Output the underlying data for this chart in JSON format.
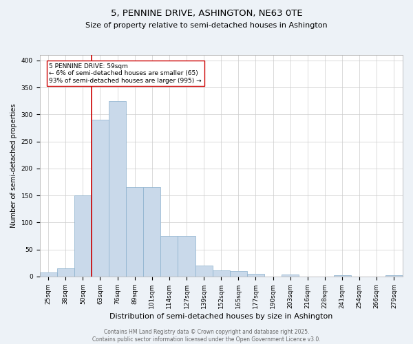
{
  "title": "5, PENNINE DRIVE, ASHINGTON, NE63 0TE",
  "subtitle": "Size of property relative to semi-detached houses in Ashington",
  "xlabel": "Distribution of semi-detached houses by size in Ashington",
  "ylabel": "Number of semi-detached properties",
  "categories": [
    "25sqm",
    "38sqm",
    "50sqm",
    "63sqm",
    "76sqm",
    "89sqm",
    "101sqm",
    "114sqm",
    "127sqm",
    "139sqm",
    "152sqm",
    "165sqm",
    "177sqm",
    "190sqm",
    "203sqm",
    "216sqm",
    "228sqm",
    "241sqm",
    "254sqm",
    "266sqm",
    "279sqm"
  ],
  "values": [
    7,
    15,
    150,
    290,
    325,
    165,
    165,
    75,
    75,
    20,
    12,
    10,
    5,
    0,
    4,
    0,
    0,
    3,
    0,
    0,
    2
  ],
  "bar_color": "#c9d9ea",
  "bar_edgecolor": "#8ab0cc",
  "property_line_color": "#cc0000",
  "annotation_text": "5 PENNINE DRIVE: 59sqm\n← 6% of semi-detached houses are smaller (65)\n93% of semi-detached houses are larger (995) →",
  "annotation_box_color": "#ffffff",
  "annotation_box_edgecolor": "#cc0000",
  "footer_text": "Contains HM Land Registry data © Crown copyright and database right 2025.\nContains public sector information licensed under the Open Government Licence v3.0.",
  "background_color": "#edf2f7",
  "plot_background_color": "#ffffff",
  "ylim": [
    0,
    410
  ],
  "yticks": [
    0,
    50,
    100,
    150,
    200,
    250,
    300,
    350,
    400
  ],
  "grid_color": "#cccccc",
  "title_fontsize": 9.5,
  "subtitle_fontsize": 8,
  "ylabel_fontsize": 7,
  "xlabel_fontsize": 8,
  "tick_fontsize": 6.5,
  "annot_fontsize": 6.5,
  "footer_fontsize": 5.5
}
